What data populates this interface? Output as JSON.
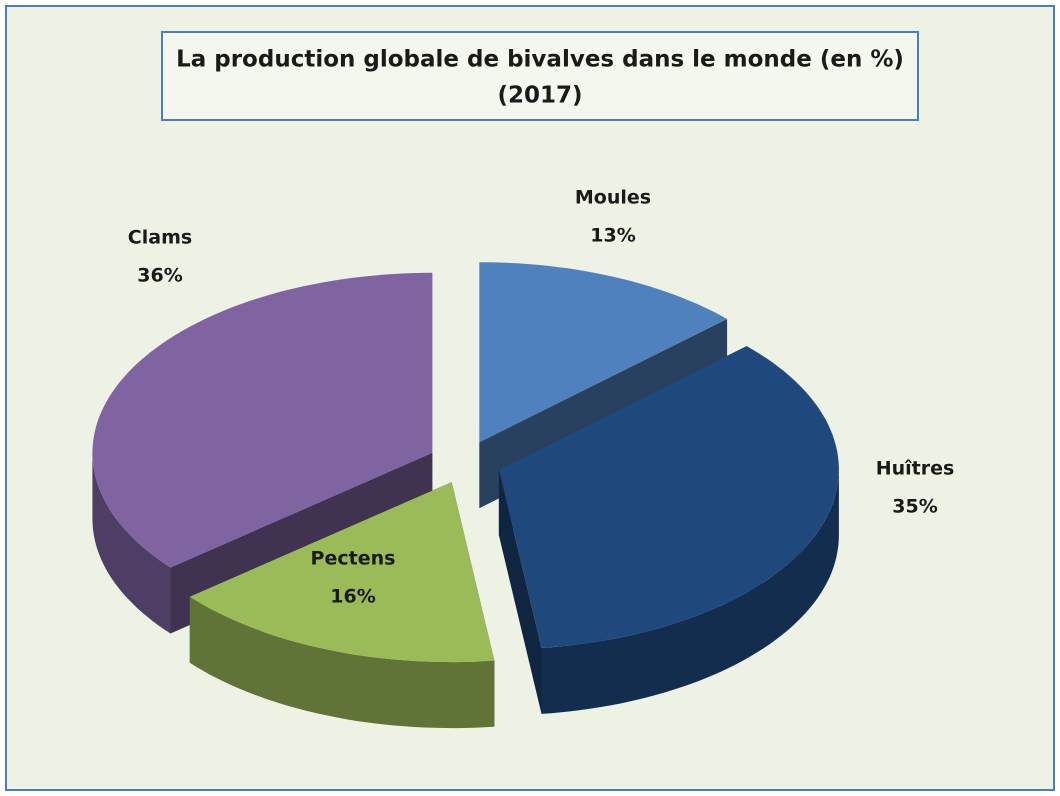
{
  "chart_data": {
    "type": "pie3d",
    "title": "La production globale de bivalves dans le monde (en %)",
    "subtitle": "(2017)",
    "categories": [
      "Moules",
      "Huîtres",
      "Pectens",
      "Clams"
    ],
    "values": [
      13,
      35,
      16,
      36
    ],
    "value_labels": [
      "13%",
      "35%",
      "16%",
      "36%"
    ],
    "colors": [
      "#4f81bd",
      "#1f497d",
      "#9bbb59",
      "#8064a2"
    ]
  }
}
